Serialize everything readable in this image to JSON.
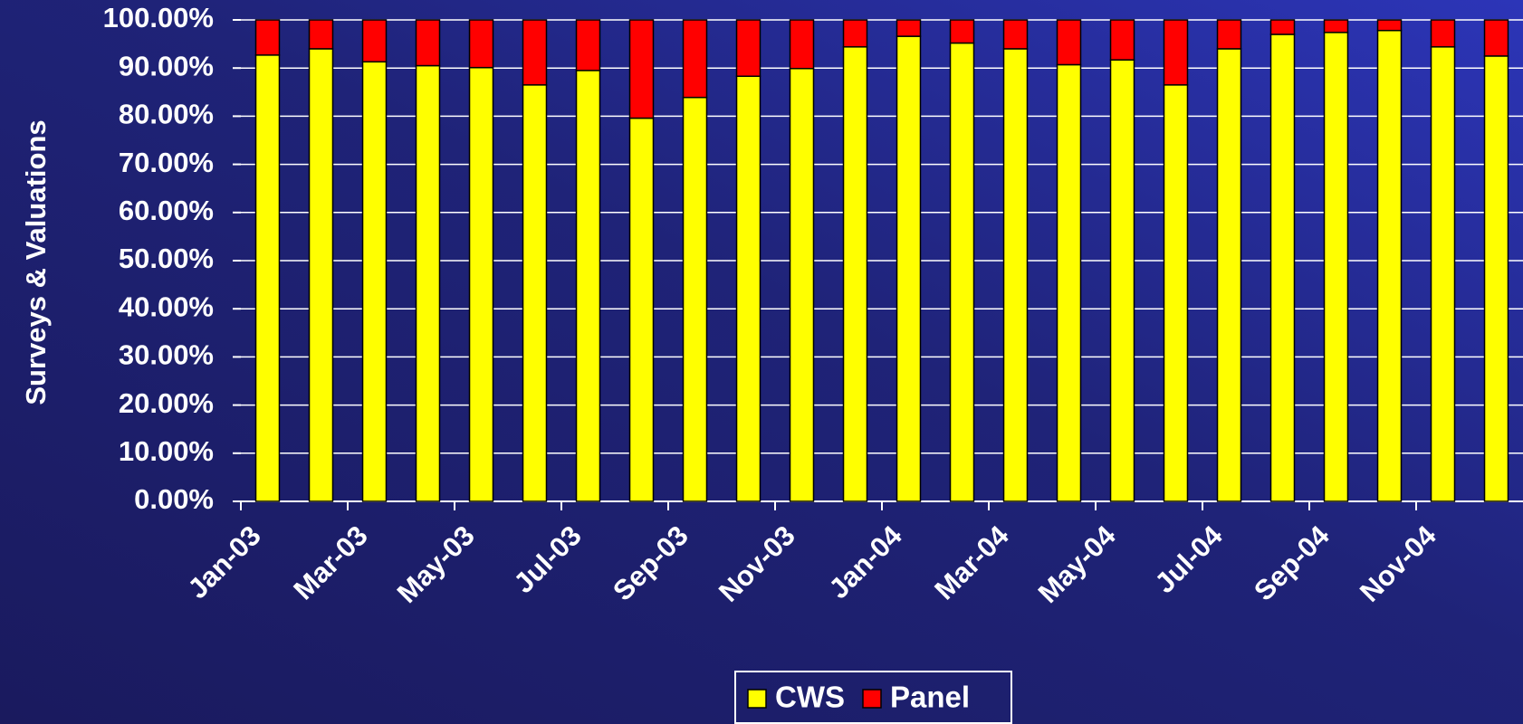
{
  "chart_data": {
    "type": "stacked_bar",
    "y_label": "Surveys & Valuations",
    "categories": [
      "Jan-03",
      null,
      "Mar-03",
      null,
      "May-03",
      null,
      "Jul-03",
      null,
      "Sep-03",
      null,
      "Nov-03",
      null,
      "Jan-04",
      null,
      "Mar-04",
      null,
      "May-04",
      null,
      "Jul-04",
      null,
      "Sep-04",
      null,
      "Nov-04",
      null
    ],
    "series": [
      {
        "name": "CWS",
        "color": "#ffff00",
        "values": [
          92.7,
          94.0,
          91.3,
          90.5,
          90.1,
          86.5,
          89.5,
          79.6,
          83.9,
          88.3,
          89.9,
          94.4,
          96.6,
          95.2,
          94.0,
          90.7,
          91.7,
          86.5,
          94.0,
          97.0,
          97.4,
          97.8,
          94.4,
          92.5
        ]
      },
      {
        "name": "Panel",
        "color": "#ff0000",
        "values": [
          7.3,
          6.0,
          8.7,
          9.5,
          9.9,
          13.5,
          10.5,
          20.4,
          16.1,
          11.7,
          10.1,
          5.6,
          3.4,
          4.8,
          6.0,
          9.3,
          8.3,
          13.5,
          6.0,
          3.0,
          2.6,
          2.2,
          5.6,
          7.5
        ]
      }
    ],
    "ylim": [
      0,
      100
    ],
    "yticks": [
      {
        "value": 0,
        "label": "0.00%"
      },
      {
        "value": 10,
        "label": "10.00%"
      },
      {
        "value": 20,
        "label": "20.00%"
      },
      {
        "value": 30,
        "label": "30.00%"
      },
      {
        "value": 40,
        "label": "40.00%"
      },
      {
        "value": 50,
        "label": "50.00%"
      },
      {
        "value": 60,
        "label": "60.00%"
      },
      {
        "value": 70,
        "label": "70.00%"
      },
      {
        "value": 80,
        "label": "80.00%"
      },
      {
        "value": 90,
        "label": "90.00%"
      },
      {
        "value": 100,
        "label": "100.00%"
      }
    ],
    "grid": true,
    "legend": "bottom"
  }
}
